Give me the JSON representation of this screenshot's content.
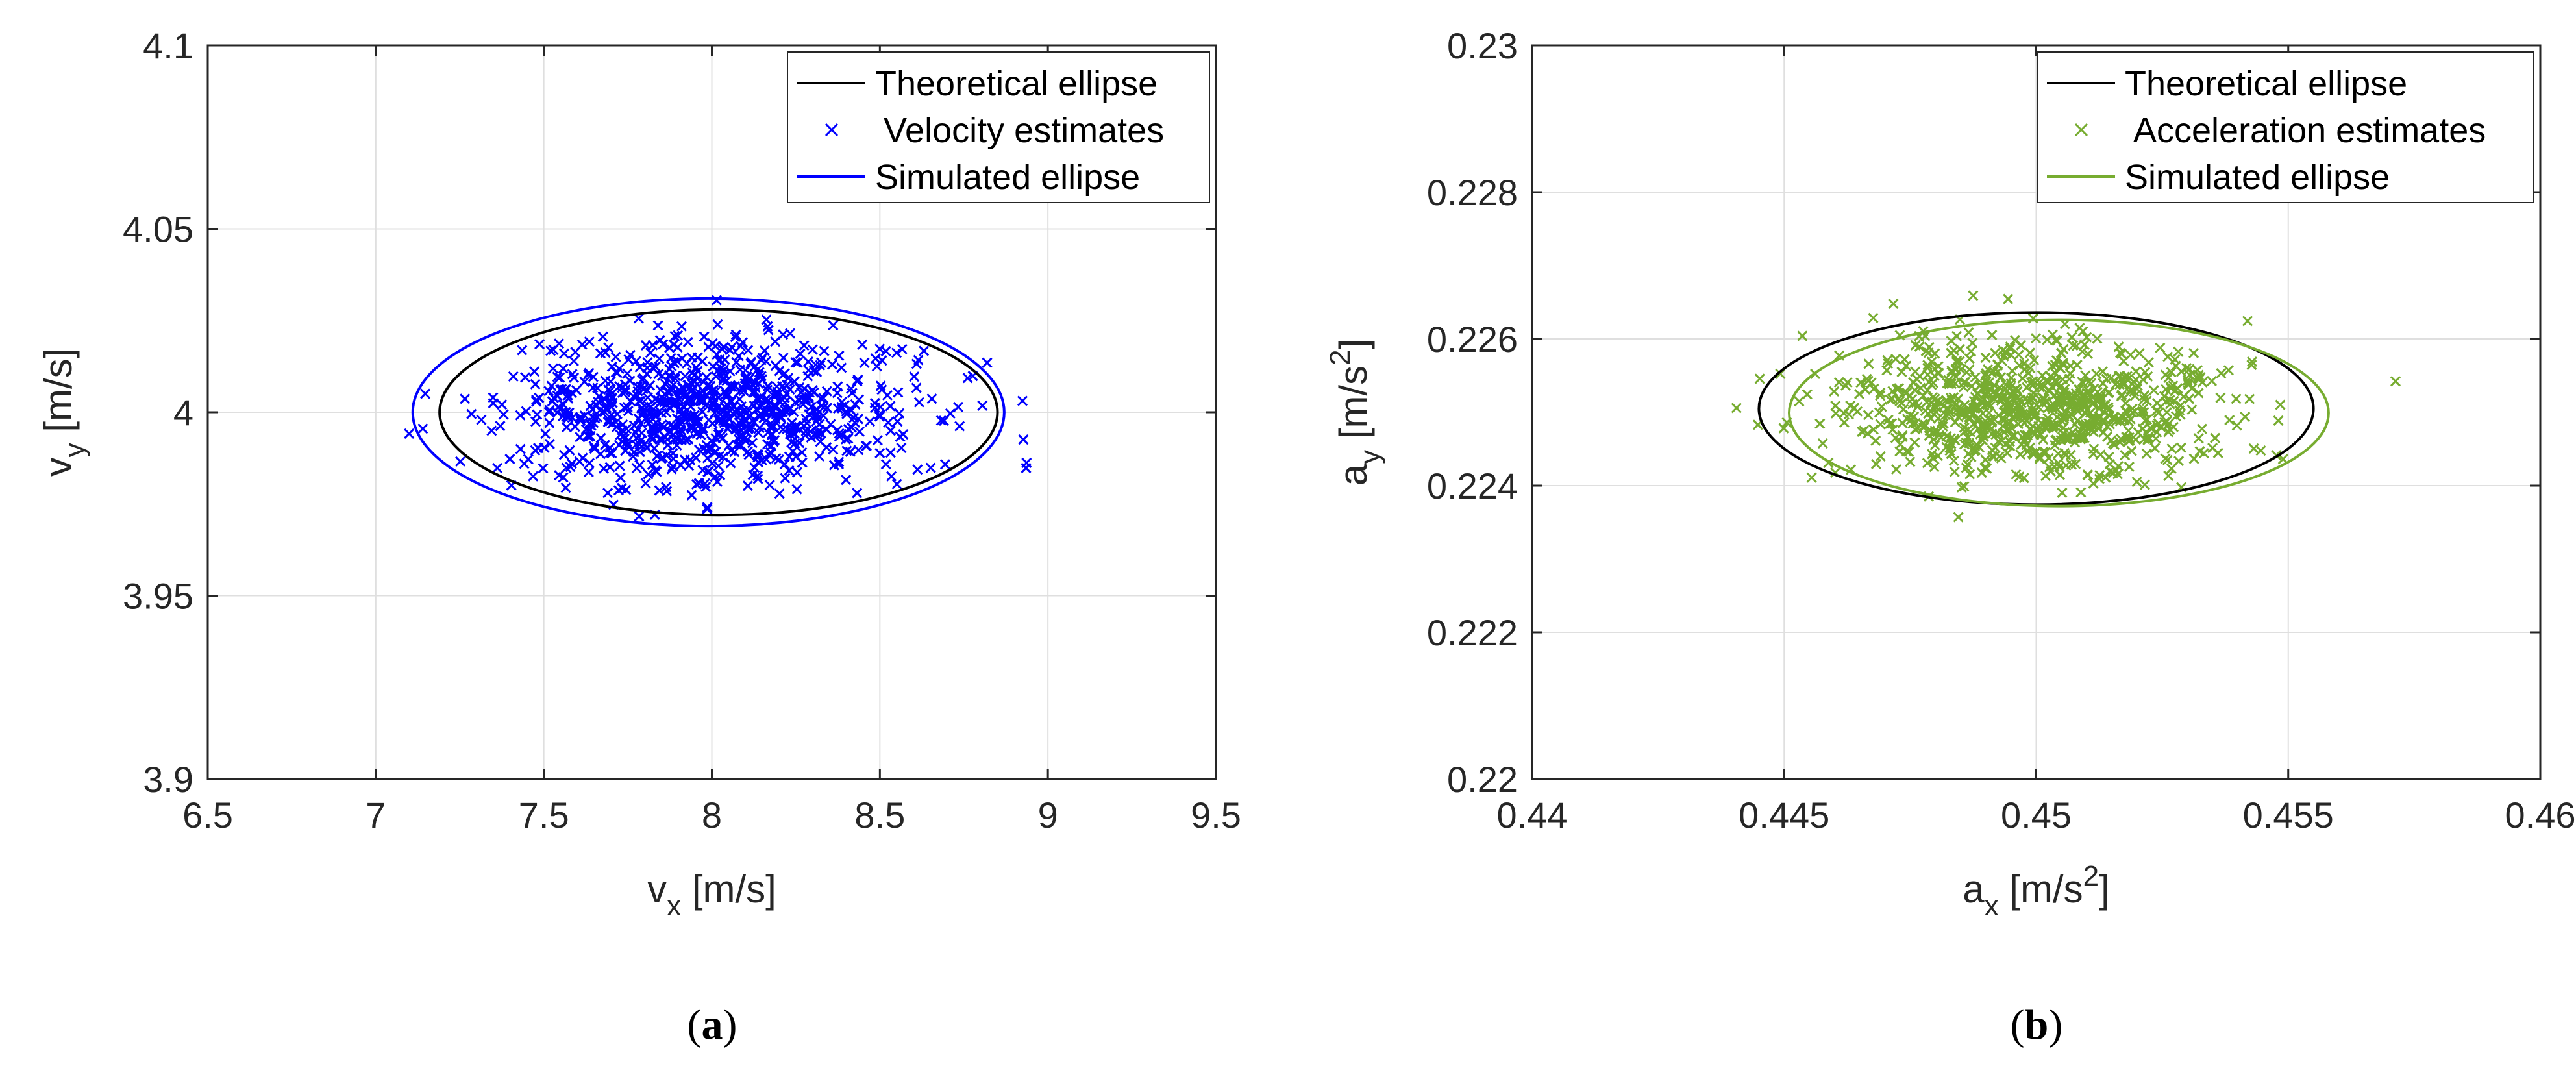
{
  "chart_data": [
    {
      "type": "scatter",
      "panel_label": "a",
      "xlabel": "v",
      "xlabel_sub": "x",
      "xlabel_unit": " [m/s]",
      "ylabel": "v",
      "ylabel_sub": "y",
      "ylabel_unit": " [m/s]",
      "xlim": [
        6.5,
        9.5
      ],
      "ylim": [
        3.9,
        4.1
      ],
      "xticks": [
        6.5,
        7,
        7.5,
        8,
        8.5,
        9,
        9.5
      ],
      "xtick_labels": [
        "6.5",
        "7",
        "7.5",
        "8",
        "8.5",
        "9",
        "9.5"
      ],
      "yticks": [
        3.9,
        3.95,
        4.0,
        4.05,
        4.1
      ],
      "ytick_labels": [
        "3.9",
        "3.95",
        "4",
        "4.05",
        "4.1"
      ],
      "grid": true,
      "legend_position": "top-right",
      "series": [
        {
          "name": "Theoretical ellipse",
          "kind": "ellipse",
          "color": "#000000",
          "center": [
            8.02,
            4.0
          ],
          "rx": 0.83,
          "ry": 0.028
        },
        {
          "name": "Velocity estimates",
          "kind": "points",
          "color": "#0000ff",
          "marker": "x",
          "center": [
            8.0,
            4.0
          ],
          "sd": [
            0.3,
            0.01
          ],
          "count": 900,
          "seed": 7
        },
        {
          "name": "Simulated ellipse",
          "kind": "ellipse",
          "color": "#0000ff",
          "center": [
            7.99,
            4.0
          ],
          "rx": 0.88,
          "ry": 0.031
        }
      ]
    },
    {
      "type": "scatter",
      "panel_label": "b",
      "xlabel": "a",
      "xlabel_sub": "x",
      "xlabel_unit": " [m/s",
      "xlabel_sup": "2",
      "ylabel": "a",
      "ylabel_sub": "y",
      "ylabel_unit": " [m/s",
      "ylabel_sup": "2",
      "xlim": [
        0.44,
        0.46
      ],
      "ylim": [
        0.22,
        0.23
      ],
      "xticks": [
        0.44,
        0.445,
        0.45,
        0.455,
        0.46
      ],
      "xtick_labels": [
        "0.44",
        "0.445",
        "0.45",
        "0.455",
        "0.46"
      ],
      "yticks": [
        0.22,
        0.222,
        0.224,
        0.226,
        0.228,
        0.23
      ],
      "ytick_labels": [
        "0.22",
        "0.222",
        "0.224",
        "0.226",
        "0.228",
        "0.23"
      ],
      "grid": true,
      "legend_position": "top-right",
      "series": [
        {
          "name": "Theoretical ellipse",
          "kind": "ellipse",
          "color": "#000000",
          "center": [
            0.45,
            0.22505
          ],
          "rx": 0.0055,
          "ry": 0.00131
        },
        {
          "name": "Acceleration estimates",
          "kind": "points",
          "color": "#77ac30",
          "marker": "x",
          "center": [
            0.45,
            0.22505
          ],
          "sd": [
            0.0019,
            0.00045
          ],
          "count": 900,
          "seed": 13
        },
        {
          "name": "Simulated ellipse",
          "kind": "ellipse",
          "color": "#77ac30",
          "center": [
            0.45045,
            0.22499
          ],
          "rx": 0.00535,
          "ry": 0.00127
        }
      ]
    }
  ]
}
